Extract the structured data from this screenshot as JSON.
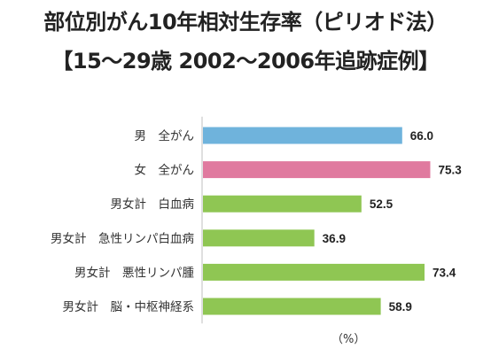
{
  "title": "部位別がん10年相対生存率（ピリオド法）",
  "subtitle": "【15～29歳 2002～2006年追跡症例】",
  "unit_label": "（%）",
  "colors": {
    "blue": "#6fb3dc",
    "pink": "#e07a9f",
    "green": "#8fc653"
  },
  "chart_data": {
    "type": "bar",
    "orientation": "horizontal",
    "title": "部位別がん10年相対生存率（ピリオド法）",
    "subtitle": "【15～29歳 2002～2006年追跡症例】",
    "xlabel": "（%）",
    "ylabel": "",
    "xlim": [
      0,
      100
    ],
    "grid": false,
    "legend": "none",
    "categories": [
      "男　全がん",
      "女　全がん",
      "男女計　白血病",
      "男女計　急性リンパ白血病",
      "男女計　悪性リンパ腫",
      "男女計　脳・中枢神経系"
    ],
    "values": [
      66.0,
      75.3,
      52.5,
      36.9,
      73.4,
      58.9
    ],
    "value_labels": [
      "66.0",
      "75.3",
      "52.5",
      "36.9",
      "73.4",
      "58.9"
    ],
    "bar_colors": [
      "blue",
      "pink",
      "green",
      "green",
      "green",
      "green"
    ]
  }
}
